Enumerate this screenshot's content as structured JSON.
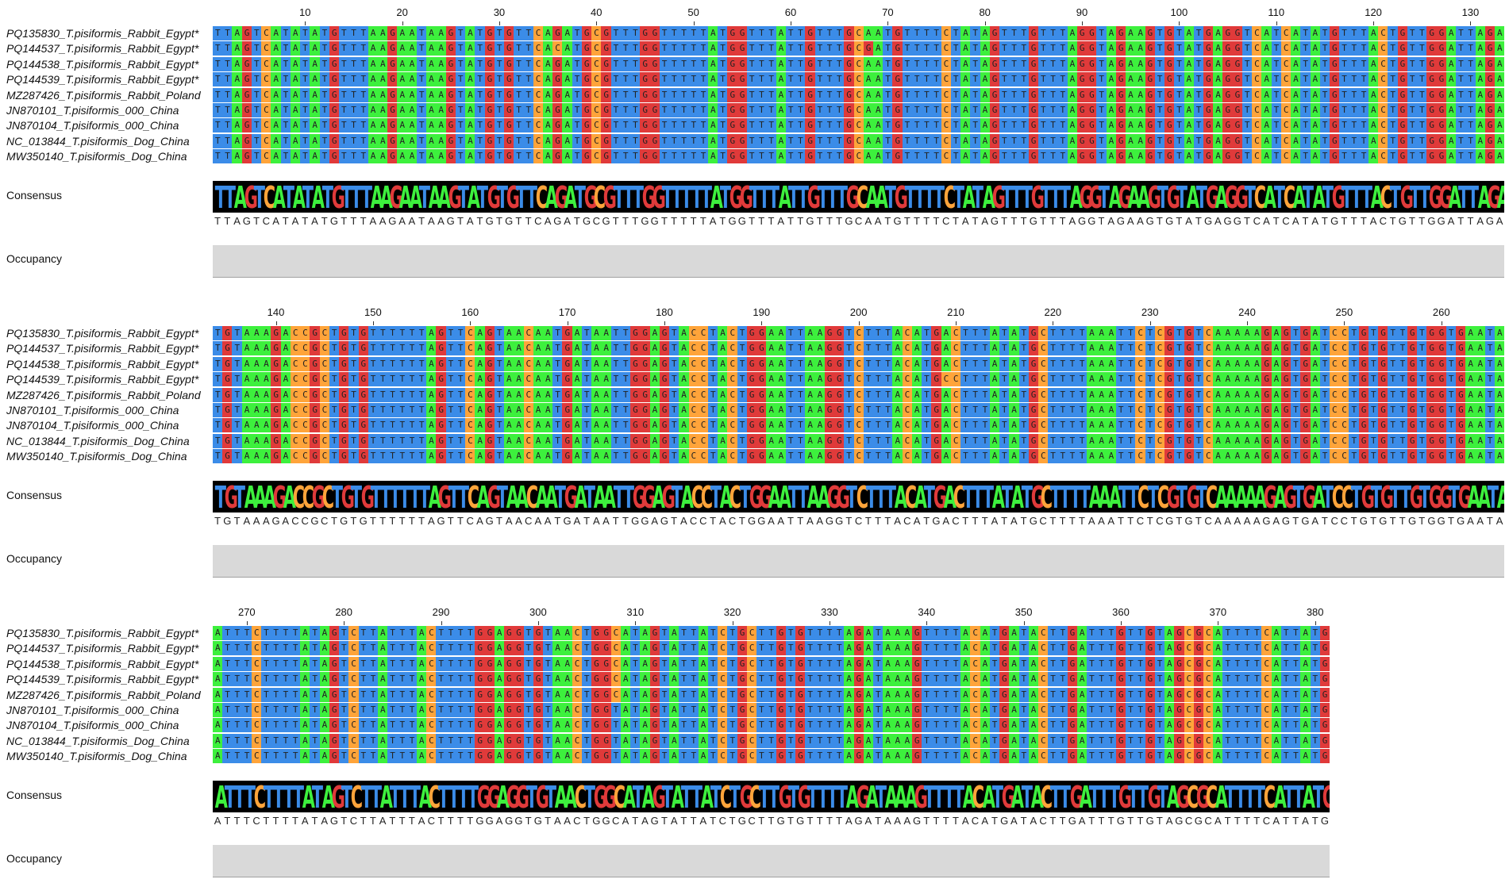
{
  "labels": {
    "consensus": "Consensus",
    "occupancy": "Occupancy"
  },
  "sequences": [
    "PQ135830_T.pisiformis_Rabbit_Egypt*",
    "PQ144537_T.pisiformis_Rabbit_Egypt*",
    "PQ144538_T.pisiformis_Rabbit_Egypt*",
    "PQ144539_T.pisiformis_Rabbit_Egypt*",
    "MZ287426_T.pisiformis_Rabbit_Poland",
    "JN870101_T.pisiformis_000_China",
    "JN870104_T.pisiformis_000_China",
    "NC_013844_T.pisiformis_Dog_China",
    "MW350140_T.pisiformis_Dog_China"
  ],
  "blocks": [
    {
      "start": 1,
      "ticks": [
        "10",
        "20",
        "30",
        "40",
        "50",
        "60",
        "70",
        "80",
        "90",
        "100",
        "110",
        "120",
        "130"
      ],
      "consensus": "TTAGTCATATATGTTTAAGAATAAGTATGTGTTCAGATGCGTTTGGTTTTTATGGTTTATTGTTTGCAATGTTTTCTATAGTTTGTTTAGGTAGAAGTGTATGAGGTCATCATATGTTTACTGTTGGATTAGA",
      "variants": [
        {
          "row": 1,
          "pos": 36,
          "base": "C"
        },
        {
          "row": 1,
          "pos": 68,
          "base": "G"
        }
      ]
    },
    {
      "start": 134,
      "ticks": [
        "140",
        "150",
        "160",
        "170",
        "180",
        "190",
        "200",
        "210",
        "220",
        "230",
        "240",
        "250",
        "260"
      ],
      "consensus": "TGTAAAGACCGCTGTGTTTTTTAGTTCAGTAACAATGATAATTGGAGTACCTACTGGAATTAAGGTCTTTACATGACTTTATATGCTTTTAAATTCTCGTGTCAAAAAGAGTGATCCTGTGTTGTGGTGAATA",
      "variants": [
        {
          "row": 3,
          "pos": 208,
          "base": "G"
        },
        {
          "row": 3,
          "pos": 209,
          "base": "C"
        }
      ]
    },
    {
      "start": 267,
      "ticks": [
        "270",
        "280",
        "290",
        "300",
        "310",
        "320",
        "330",
        "340",
        "350",
        "360",
        "370",
        "380"
      ],
      "consensus": "ATTTCTTTTATAGTCTTATTTACTTTTGGAGGTGTAACTGGCATAGTATTATCTGCTTGTGTTTTAGATAAAGTTTTACATGATACTTGATTTGTTGTAGCGCATTTTCATTATG",
      "variants": [
        {
          "row": 5,
          "pos": 308,
          "base": "T"
        },
        {
          "row": 6,
          "pos": 308,
          "base": "T"
        },
        {
          "row": 7,
          "pos": 308,
          "base": "T"
        },
        {
          "row": 8,
          "pos": 308,
          "base": "T"
        }
      ]
    }
  ],
  "colors": {
    "A": "#3df03d",
    "C": "#ffa43a",
    "G": "#e03a3a",
    "T": "#3b8ce8",
    "consensus_bg": "#000000",
    "occupancy": "#d9d9d9"
  }
}
